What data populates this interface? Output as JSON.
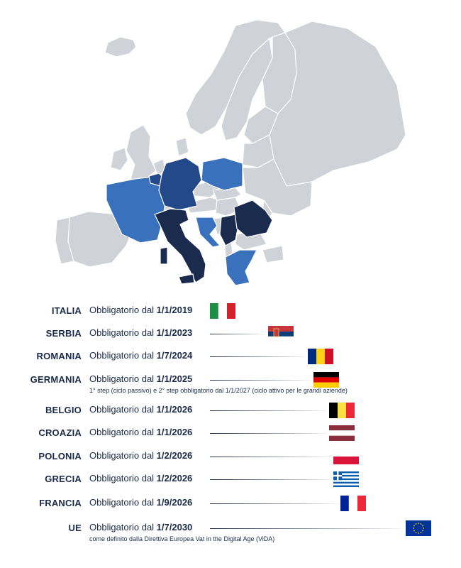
{
  "colors": {
    "land_gray": "#cfd2d6",
    "border": "#ffffff",
    "navy": "#1a2b4e",
    "mid_blue": "#23498a",
    "light_blue": "#3a71bd",
    "text": "#1c2b4a"
  },
  "map": {
    "highlighted": [
      {
        "country": "Italia",
        "shade": "navy"
      },
      {
        "country": "Serbia",
        "shade": "navy"
      },
      {
        "country": "Romania",
        "shade": "navy"
      },
      {
        "country": "Germania",
        "shade": "mid_blue"
      },
      {
        "country": "Belgio",
        "shade": "mid_blue"
      },
      {
        "country": "Croazia",
        "shade": "light_blue"
      },
      {
        "country": "Polonia",
        "shade": "light_blue"
      },
      {
        "country": "Grecia",
        "shade": "light_blue"
      },
      {
        "country": "Francia",
        "shade": "light_blue"
      }
    ]
  },
  "rows": [
    {
      "country": "ITALIA",
      "prefix": "Obbligatorio dal ",
      "date": "1/1/2019",
      "flag": "italy-flag",
      "note": ""
    },
    {
      "country": "SERBIA",
      "prefix": "Obbligatorio dal ",
      "date": "1/1/2023",
      "flag": "serbia-flag",
      "note": ""
    },
    {
      "country": "ROMANIA",
      "prefix": "Obbligatorio dal ",
      "date": "1/7/2024",
      "flag": "romania-flag",
      "note": ""
    },
    {
      "country": "GERMANIA",
      "prefix": "Obbligatorio dal ",
      "date": "1/1/2025",
      "flag": "germany-flag",
      "note": "1° step (ciclo passivo) e 2° step obbligatorio dal 1/1/2027 (ciclo attivo per le grandi aziende)"
    },
    {
      "country": "BELGIO",
      "prefix": "Obbligatorio dal ",
      "date": "1/1/2026",
      "flag": "belgium-flag",
      "note": ""
    },
    {
      "country": "CROAZIA",
      "prefix": "Obbligatorio dal ",
      "date": "1/1/2026",
      "flag": "croatia-flag",
      "note": ""
    },
    {
      "country": "POLONIA",
      "prefix": "Obbligatorio dal ",
      "date": "1/2/2026",
      "flag": "poland-flag",
      "note": ""
    },
    {
      "country": "GRECIA",
      "prefix": "Obbligatorio dal ",
      "date": "1/2/2026",
      "flag": "greece-flag",
      "note": ""
    },
    {
      "country": "FRANCIA",
      "prefix": "Obbligatorio dal ",
      "date": "1/9/2026",
      "flag": "france-flag",
      "note": ""
    },
    {
      "country": "UE",
      "prefix": "Obbligatorio dal ",
      "date": "1/7/2030",
      "flag": "eu-flag",
      "note": "come definito dalla Direttiva Europea Vat in the Digital Age (ViDA)"
    }
  ]
}
